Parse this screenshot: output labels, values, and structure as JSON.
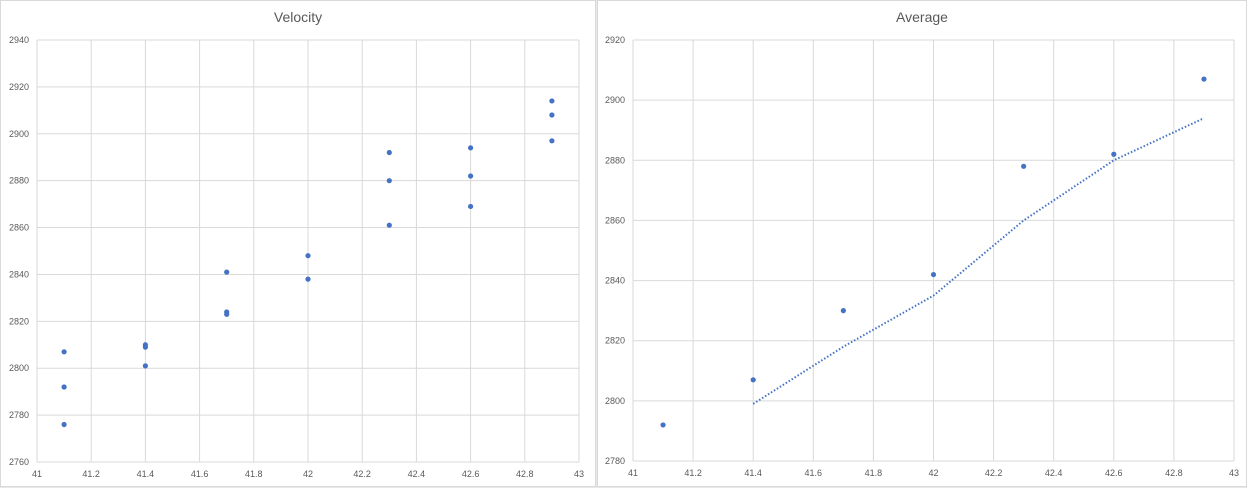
{
  "chart_data": [
    {
      "type": "scatter",
      "title": "Velocity",
      "xlabel": "",
      "ylabel": "",
      "xlim": [
        41,
        43
      ],
      "ylim": [
        2760,
        2940
      ],
      "xticks": [
        41,
        41.2,
        41.4,
        41.6,
        41.8,
        42,
        42.2,
        42.4,
        42.6,
        42.8,
        43
      ],
      "xtick_labels": [
        "41",
        "41.2",
        "41.4",
        "41.6",
        "41.8",
        "42",
        "42.2",
        "42.4",
        "42.6",
        "42.8",
        "43"
      ],
      "yticks": [
        2760,
        2780,
        2800,
        2820,
        2840,
        2860,
        2880,
        2900,
        2920,
        2940
      ],
      "ytick_labels": [
        "2760",
        "2780",
        "2800",
        "2820",
        "2840",
        "2860",
        "2880",
        "2900",
        "2920",
        "2940"
      ],
      "grid": true,
      "series": [
        {
          "color": "#4472c4",
          "points": [
            [
              41.1,
              2807
            ],
            [
              41.1,
              2792
            ],
            [
              41.1,
              2776
            ],
            [
              41.4,
              2810
            ],
            [
              41.4,
              2809
            ],
            [
              41.4,
              2801
            ],
            [
              41.7,
              2841
            ],
            [
              41.7,
              2824
            ],
            [
              41.7,
              2823
            ],
            [
              42.0,
              2848
            ],
            [
              42.0,
              2838
            ],
            [
              42.3,
              2892
            ],
            [
              42.3,
              2880
            ],
            [
              42.3,
              2861
            ],
            [
              42.6,
              2894
            ],
            [
              42.6,
              2882
            ],
            [
              42.6,
              2869
            ],
            [
              42.9,
              2914
            ],
            [
              42.9,
              2908
            ],
            [
              42.9,
              2897
            ]
          ]
        }
      ]
    },
    {
      "type": "scatter",
      "title": "Average",
      "xlabel": "",
      "ylabel": "",
      "xlim": [
        41,
        43
      ],
      "ylim": [
        2780,
        2920
      ],
      "xticks": [
        41,
        41.2,
        41.4,
        41.6,
        41.8,
        42,
        42.2,
        42.4,
        42.6,
        42.8,
        43
      ],
      "xtick_labels": [
        "41",
        "41.2",
        "41.4",
        "41.6",
        "41.8",
        "42",
        "42.2",
        "42.4",
        "42.6",
        "42.8",
        "43"
      ],
      "yticks": [
        2780,
        2800,
        2820,
        2840,
        2860,
        2880,
        2900,
        2920
      ],
      "ytick_labels": [
        "2780",
        "2800",
        "2820",
        "2840",
        "2860",
        "2880",
        "2900",
        "2920"
      ],
      "grid": true,
      "series": [
        {
          "color": "#4472c4",
          "points": [
            [
              41.1,
              2792
            ],
            [
              41.4,
              2807
            ],
            [
              41.7,
              2830
            ],
            [
              42.0,
              2842
            ],
            [
              42.3,
              2878
            ],
            [
              42.6,
              2882
            ],
            [
              42.9,
              2907
            ]
          ]
        }
      ],
      "trendline": {
        "style": "dotted",
        "color": "#4472c4",
        "points": [
          [
            41.4,
            2799
          ],
          [
            41.7,
            2818
          ],
          [
            42.0,
            2835
          ],
          [
            42.3,
            2860
          ],
          [
            42.6,
            2880
          ],
          [
            42.9,
            2894
          ]
        ]
      }
    }
  ]
}
